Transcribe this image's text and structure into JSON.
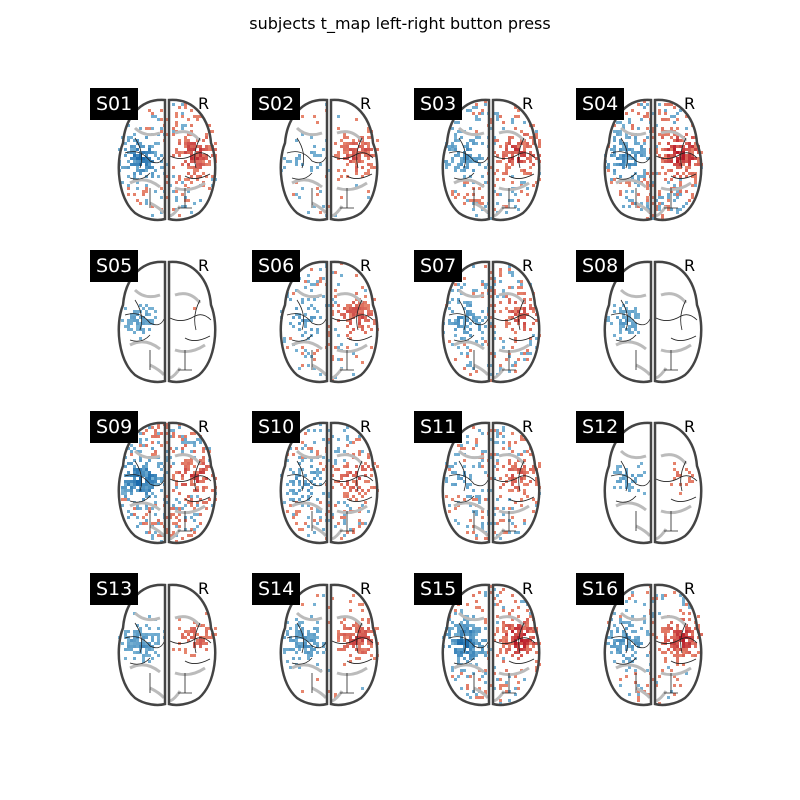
{
  "title": "subjects t_map left-right button press",
  "side_label": "R",
  "colors": {
    "negative": "#2166ac",
    "positive": "#b2182b",
    "outline": "#444444"
  },
  "colormap": "RdBu_r",
  "subjects": [
    "S01",
    "S02",
    "S03",
    "S04",
    "S05",
    "S06",
    "S07",
    "S08",
    "S09",
    "S10",
    "S11",
    "S12",
    "S13",
    "S14",
    "S15",
    "S16"
  ]
}
